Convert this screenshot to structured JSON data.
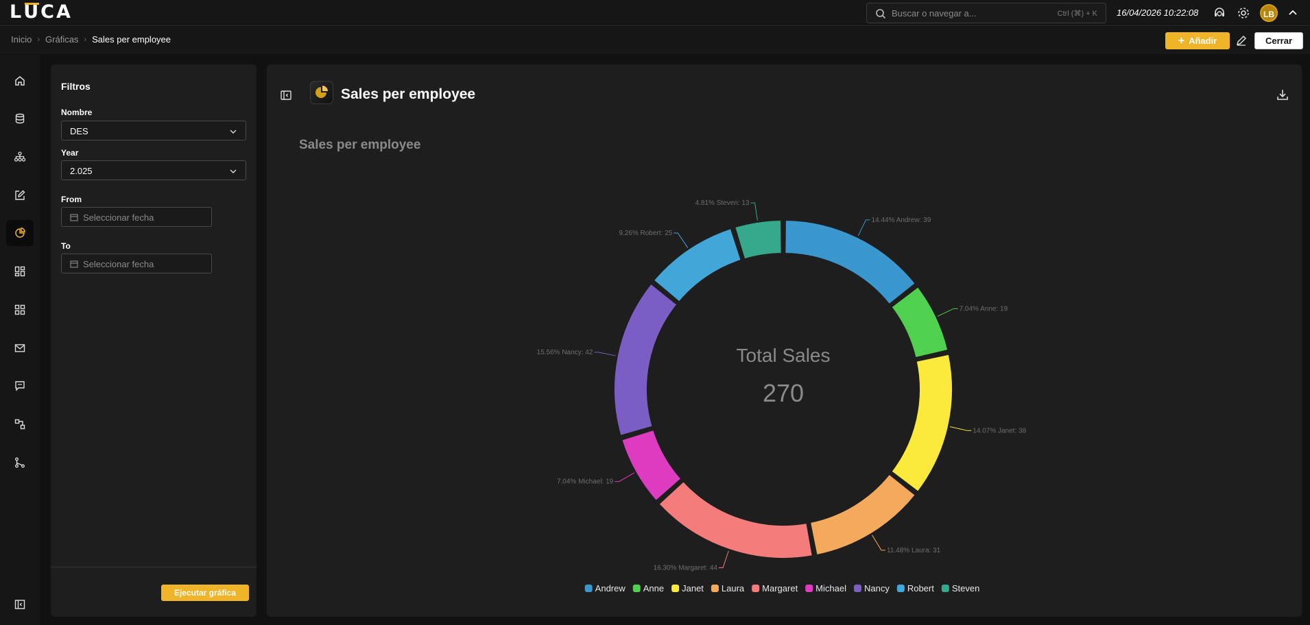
{
  "app": {
    "logo": "LUCA"
  },
  "topbar": {
    "search_placeholder": "Buscar o navegar a...",
    "search_shortcut": "Ctrl (⌘) + K",
    "datetime": "16/04/2026 10:22:08",
    "avatar_initials": "LB"
  },
  "breadcrumb": {
    "items": [
      "Inicio",
      "Gráficas"
    ],
    "current": "Sales per employee"
  },
  "actions": {
    "add_label": "Añadir",
    "close_label": "Cerrar"
  },
  "filters": {
    "title": "Filtros",
    "nombre_label": "Nombre",
    "nombre_value": "DES",
    "year_label": "Year",
    "year_value": "2.025",
    "from_label": "From",
    "from_placeholder": "Seleccionar fecha",
    "to_label": "To",
    "to_placeholder": "Seleccionar fecha",
    "run_label": "Ejecutar gráfica"
  },
  "chart_panel": {
    "title": "Sales per employee"
  },
  "colors": {
    "accent": "#f0b429",
    "background": "#111111",
    "panel": "#1e1e1e"
  },
  "chart_data": {
    "type": "pie",
    "title": "Sales per employee",
    "center_label": "Total Sales",
    "center_value": "270",
    "legend_position": "bottom",
    "slices": [
      {
        "name": "Andrew",
        "value": 39,
        "label": "14.44% Andrew: 39",
        "color": "#3a98ce"
      },
      {
        "name": "Anne",
        "value": 19,
        "label": "7.04% Anne: 19",
        "color": "#4fd14f"
      },
      {
        "name": "Janet",
        "value": 38,
        "label": "14.07% Janet: 38",
        "color": "#fbea3c"
      },
      {
        "name": "Laura",
        "value": 31,
        "label": "11.48% Laura: 31",
        "color": "#f5a95c"
      },
      {
        "name": "Margaret",
        "value": 44,
        "label": "16.30% Margaret: 44",
        "color": "#f47d7c"
      },
      {
        "name": "Michael",
        "value": 19,
        "label": "7.04% Michael: 19",
        "color": "#de3cc0"
      },
      {
        "name": "Nancy",
        "value": 42,
        "label": "15.56% Nancy: 42",
        "color": "#7a5ec4"
      },
      {
        "name": "Robert",
        "value": 25,
        "label": "9.26% Robert: 25",
        "color": "#43a6d8"
      },
      {
        "name": "Steven",
        "value": 13,
        "label": "4.81% Steven: 13",
        "color": "#36a88c"
      }
    ]
  }
}
